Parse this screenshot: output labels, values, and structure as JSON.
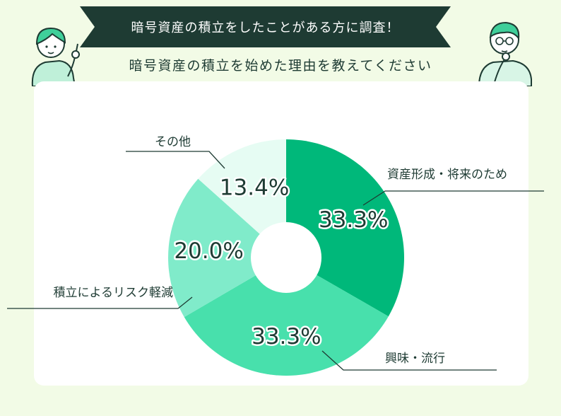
{
  "header": {
    "banner": "暗号資産の積立をしたことがある方に調査！",
    "subtitle": "暗号資産の積立を始めた理由を教えてください"
  },
  "colors": {
    "background": "#f2fbe6",
    "banner": "#1e3b33",
    "text": "#1e3b33",
    "slices": [
      "#00b87a",
      "#48e0ac",
      "#80ebca",
      "#e6fcf3"
    ]
  },
  "chart_data": {
    "type": "pie",
    "donut": true,
    "start": "12 o'clock",
    "direction": "clockwise",
    "slices": [
      {
        "label": "資産形成・将来のため",
        "value": 33.3,
        "value_label": "33.3%"
      },
      {
        "label": "興味・流行",
        "value": 33.3,
        "value_label": "33.3%"
      },
      {
        "label": "積立によるリスク軽減",
        "value": 20.0,
        "value_label": "20.0%"
      },
      {
        "label": "その他",
        "value": 13.4,
        "value_label": "13.4%"
      }
    ]
  }
}
